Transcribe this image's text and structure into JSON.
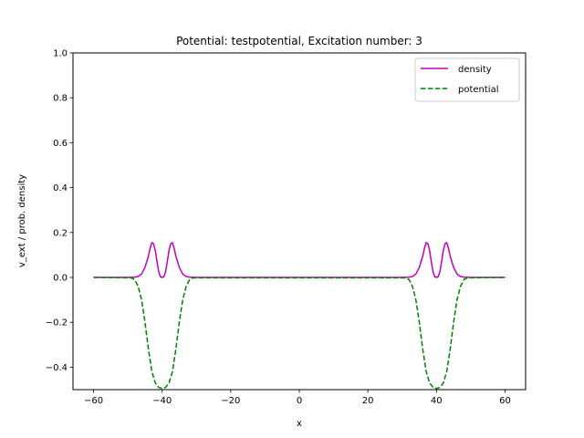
{
  "chart_data": {
    "type": "line",
    "title": "Potential: testpotential, Excitation number: 3",
    "xlabel": "x",
    "ylabel": "v_ext / prob. density",
    "xlim": [
      -66,
      66
    ],
    "ylim": [
      -0.5,
      1.0
    ],
    "xticks": [
      -60,
      -40,
      -20,
      0,
      20,
      40,
      60
    ],
    "yticks": [
      -0.4,
      -0.2,
      0.0,
      0.2,
      0.4,
      0.6,
      0.8,
      1.0
    ],
    "xtick_labels": [
      "−60",
      "−40",
      "−20",
      "0",
      "20",
      "40",
      "60"
    ],
    "ytick_labels": [
      "−0.4",
      "−0.2",
      "0.0",
      "0.2",
      "0.4",
      "0.6",
      "0.8",
      "1.0"
    ],
    "grid": false,
    "legend_position": "top-right",
    "series": [
      {
        "name": "density",
        "color": "#bf00bf",
        "style": "solid",
        "x": [
          -60,
          -50,
          -48,
          -47,
          -46,
          -45,
          -44,
          -43.5,
          -43,
          -42.5,
          -42,
          -41.5,
          -41,
          -40.5,
          -40,
          -39.5,
          -39,
          -38.5,
          -38,
          -37.5,
          -37,
          -36.5,
          -36,
          -35,
          -34,
          -33,
          -32,
          -30,
          0,
          30,
          32,
          33,
          34,
          35,
          36,
          36.5,
          37,
          37.5,
          38,
          38.5,
          39,
          39.5,
          40,
          40.5,
          41,
          41.5,
          42,
          42.5,
          43,
          43.5,
          44,
          45,
          46,
          47,
          48,
          50,
          60
        ],
        "y": [
          0,
          0,
          0.001,
          0.004,
          0.015,
          0.045,
          0.095,
          0.13,
          0.155,
          0.15,
          0.12,
          0.07,
          0.025,
          0.003,
          0,
          0.003,
          0.025,
          0.07,
          0.12,
          0.15,
          0.155,
          0.13,
          0.095,
          0.045,
          0.015,
          0.004,
          0.001,
          0,
          0,
          0,
          0.001,
          0.004,
          0.015,
          0.045,
          0.095,
          0.13,
          0.155,
          0.15,
          0.12,
          0.07,
          0.025,
          0.003,
          0,
          0.003,
          0.025,
          0.07,
          0.12,
          0.15,
          0.155,
          0.13,
          0.095,
          0.045,
          0.015,
          0.004,
          0.001,
          0,
          0
        ]
      },
      {
        "name": "potential",
        "color": "#008000",
        "style": "dashed",
        "x": [
          -60,
          -49,
          -48,
          -47,
          -46,
          -45,
          -44,
          -43,
          -42,
          -41,
          -40,
          -39,
          -38,
          -37,
          -36,
          -35,
          -34,
          -33,
          -32,
          -31,
          31,
          32,
          33,
          34,
          35,
          36,
          37,
          38,
          39,
          40,
          41,
          42,
          43,
          44,
          45,
          46,
          47,
          48,
          49,
          60
        ],
        "y": [
          0,
          -0.002,
          -0.01,
          -0.04,
          -0.1,
          -0.2,
          -0.32,
          -0.42,
          -0.47,
          -0.49,
          -0.495,
          -0.49,
          -0.47,
          -0.42,
          -0.32,
          -0.2,
          -0.1,
          -0.04,
          -0.01,
          -0.002,
          -0.002,
          -0.01,
          -0.04,
          -0.1,
          -0.2,
          -0.32,
          -0.42,
          -0.47,
          -0.49,
          -0.495,
          -0.49,
          -0.47,
          -0.42,
          -0.32,
          -0.2,
          -0.1,
          -0.04,
          -0.01,
          -0.002,
          0
        ]
      }
    ]
  }
}
